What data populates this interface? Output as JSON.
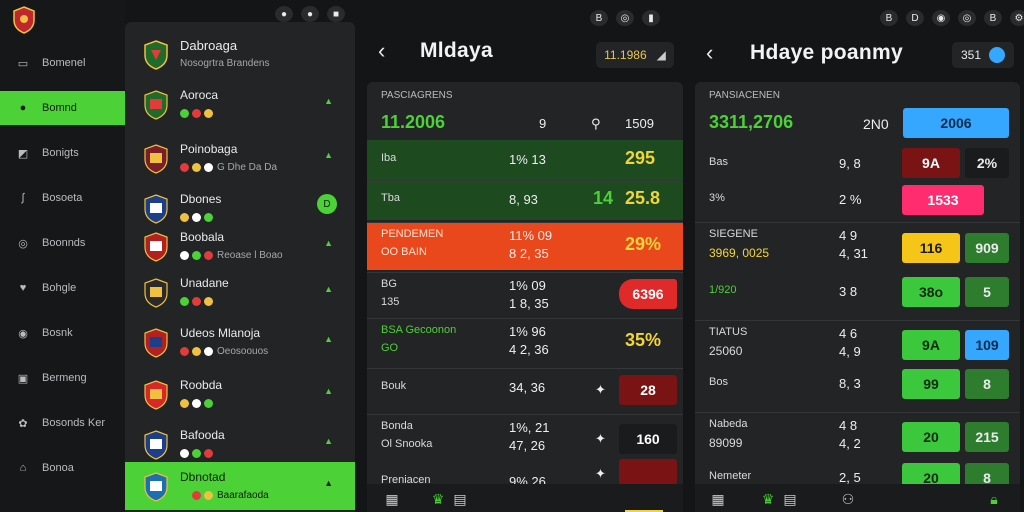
{
  "rail": {
    "items": [
      {
        "label": "Bomenel",
        "icon": "inbox-icon"
      },
      {
        "label": "Bomnd",
        "icon": "chat-icon",
        "active": true
      },
      {
        "label": "Bonigts",
        "icon": "chart-icon"
      },
      {
        "label": "Bosoeta",
        "icon": "slash-icon"
      },
      {
        "label": "Boonnds",
        "icon": "target-icon"
      },
      {
        "label": "Bohgle",
        "icon": "heart-icon"
      },
      {
        "label": "Bosnk",
        "icon": "dollar-icon"
      },
      {
        "label": "Bermeng",
        "icon": "screen-icon"
      },
      {
        "label": "Bosonds Ker",
        "icon": "gear-icon"
      },
      {
        "label": "Bonoa",
        "icon": "trophy-icon"
      }
    ]
  },
  "leagues": {
    "header": {
      "title": "Dabroaga",
      "subtitle": "Nosogrtra Brandens"
    },
    "items": [
      {
        "name": "Aoroca",
        "sub": ""
      },
      {
        "name": "Poinobaga",
        "sub": "G Dhe Da Da"
      },
      {
        "name": "Dbones",
        "sub": "",
        "badge": "D"
      },
      {
        "name": "Boobala",
        "sub": "Reoase l Boao"
      },
      {
        "name": "Unadane",
        "sub": ""
      },
      {
        "name": "Udeos Mlanoja",
        "sub": "Oeosoouos"
      },
      {
        "name": "Roobda",
        "sub": ""
      },
      {
        "name": "Bafooda",
        "sub": ""
      },
      {
        "name": "Dbnotad",
        "sub": "Baarafaoda",
        "active": true
      }
    ]
  },
  "status_left": [
    "●",
    "●",
    "■"
  ],
  "status_mid": [
    "B",
    "◎",
    "▮"
  ],
  "status_right": [
    "B",
    "D",
    "◉",
    "◎",
    "B",
    "⚙"
  ],
  "match1": {
    "title": "Mldaya",
    "box": "11.1986",
    "section_label": "PASCIAGRENS",
    "top": {
      "name": "11.2006",
      "mid": "9",
      "right": "1509"
    },
    "rows": [
      {
        "name": "Iba",
        "a": "1% 13",
        "b": "295",
        "tone": "green"
      },
      {
        "name": "Tba",
        "a": "8, 93",
        "b": "25.8",
        "tone": "green",
        "mark": "14"
      },
      {
        "name": "PENDEMEN",
        "sub": "OO BAIN",
        "a": "11% 09",
        "a2": "8 2, 35",
        "b": "29%",
        "tone": "orange"
      },
      {
        "name": "BG",
        "sub": "135",
        "a": "1% 09",
        "a2": "1 8, 35",
        "chip": "6396",
        "tone": "red"
      },
      {
        "name": "BSA Gecoonon",
        "sub": "GO",
        "a": "1% 96",
        "a2": "4 2, 36",
        "b": "35%",
        "tone": "yellow"
      },
      {
        "name": "Bouk",
        "a": "34, 36",
        "chip": "28",
        "tone": "darkred"
      },
      {
        "name": "Bonda",
        "sub": "Ol Snooka",
        "a": "1%, 21",
        "a2": "47, 26",
        "chip": "160",
        "tone": "dark"
      },
      {
        "name": "Preniacen",
        "a": "9% 26",
        "chip": "",
        "tone": "darkred"
      }
    ]
  },
  "match2": {
    "title": "Hdaye poanmy",
    "box": "351",
    "section_label": "PANSIACENEN",
    "top": {
      "name": "3311,2706",
      "mid": "2N0",
      "chip": "2006"
    },
    "rows": [
      {
        "name": "Bas",
        "a": "9, 8",
        "chip1": "9A",
        "chip2": "2%"
      },
      {
        "name": "3%",
        "a": "2 %",
        "chip1": "1533"
      },
      {
        "name": "SIEGENE",
        "sub": "3969, 0025",
        "a": "4 9",
        "a2": "4, 31",
        "chip1": "116",
        "chip2": "909"
      },
      {
        "name": "1/920",
        "a": "3 8",
        "chip1": "38o",
        "chip2": "5"
      },
      {
        "name": "TIATUS",
        "sub": "25060",
        "a": "4 6",
        "a2": "4, 9",
        "chip1": "9A",
        "chip2": "109"
      },
      {
        "name": "Bos",
        "a": "8, 3",
        "chip1": "99",
        "chip2": "8"
      },
      {
        "name": "Nabeda",
        "sub": "89099",
        "a": "4 8",
        "a2": "4, 2",
        "chip1": "20",
        "chip2": "215"
      },
      {
        "name": "Nemeter",
        "a": "2, 5",
        "chip1": "20",
        "chip2": "8"
      }
    ]
  },
  "colors": {
    "accent": "#4cd137",
    "orange": "#e8481c",
    "red": "#d62828",
    "pink": "#ff2d6f",
    "blue": "#35a7ff",
    "yellow": "#f5c518"
  }
}
